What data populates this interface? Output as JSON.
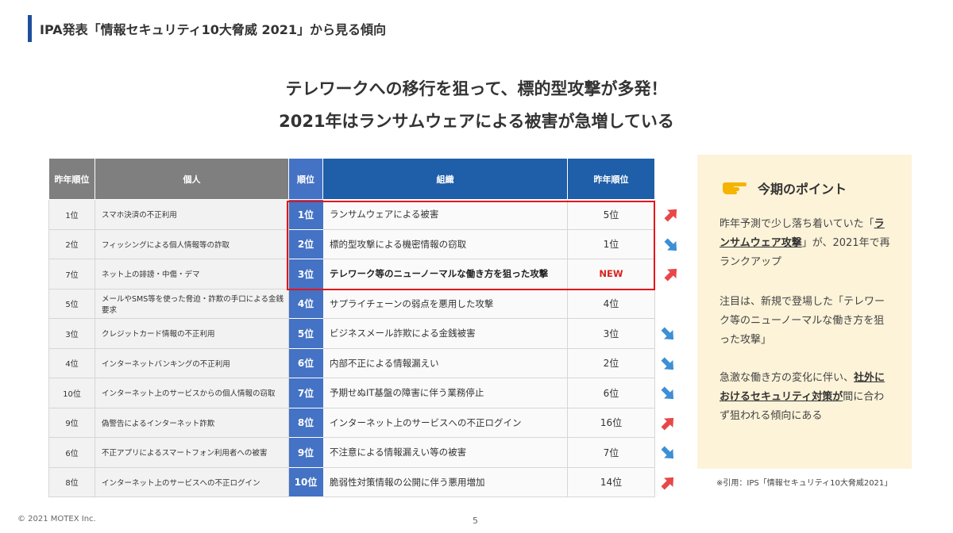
{
  "header": {
    "title": "IPA発表「情報セキュリティ10大脅威 2021」から見る傾向"
  },
  "headline": {
    "line1": "テレワークへの移行を狙って、標的型攻撃が多発！",
    "line2": "2021年はランサムウェアによる被害が急増している"
  },
  "table": {
    "headers": {
      "prev_rank_personal": "昨年順位",
      "personal": "個人",
      "rank": "順位",
      "org": "組織",
      "prev_rank_org": "昨年順位"
    },
    "rows": [
      {
        "prev_personal": "1位",
        "personal": "スマホ決済の不正利用",
        "rank": "1位",
        "org": "ランサムウェアによる被害",
        "prev_org": "5位",
        "trend": "up"
      },
      {
        "prev_personal": "2位",
        "personal": "フィッシングによる個人情報等の詐取",
        "rank": "2位",
        "org": "標的型攻撃による機密情報の窃取",
        "prev_org": "1位",
        "trend": "down"
      },
      {
        "prev_personal": "7位",
        "personal": "ネット上の誹謗・中傷・デマ",
        "rank": "3位",
        "org": "テレワーク等のニューノーマルな働き方を狙った攻撃",
        "prev_org": "NEW",
        "trend": "up"
      },
      {
        "prev_personal": "5位",
        "personal": "メールやSMS等を使った脅迫・詐欺の手口による金銭要求",
        "rank": "4位",
        "org": "サプライチェーンの弱点を悪用した攻撃",
        "prev_org": "4位",
        "trend": "none"
      },
      {
        "prev_personal": "3位",
        "personal": "クレジットカード情報の不正利用",
        "rank": "5位",
        "org": "ビジネスメール詐欺による金銭被害",
        "prev_org": "3位",
        "trend": "down"
      },
      {
        "prev_personal": "4位",
        "personal": "インターネットバンキングの不正利用",
        "rank": "6位",
        "org": "内部不正による情報漏えい",
        "prev_org": "2位",
        "trend": "down"
      },
      {
        "prev_personal": "10位",
        "personal": "インターネット上のサービスからの個人情報の窃取",
        "rank": "7位",
        "org": "予期せぬIT基盤の障害に伴う業務停止",
        "prev_org": "6位",
        "trend": "down"
      },
      {
        "prev_personal": "9位",
        "personal": "偽警告によるインターネット詐欺",
        "rank": "8位",
        "org": "インターネット上のサービスへの不正ログイン",
        "prev_org": "16位",
        "trend": "up"
      },
      {
        "prev_personal": "6位",
        "personal": "不正アプリによるスマートフォン利用者への被害",
        "rank": "9位",
        "org": "不注意による情報漏えい等の被害",
        "prev_org": "7位",
        "trend": "down"
      },
      {
        "prev_personal": "8位",
        "personal": "インターネット上のサービスへの不正ログイン",
        "rank": "10位",
        "org": "脆弱性対策情報の公開に伴う悪用増加",
        "prev_org": "14位",
        "trend": "up"
      }
    ]
  },
  "points": {
    "title": "今期のポイント",
    "icon": "pointing-hand-icon",
    "p1_before": "昨年予測で少し落ち着いていた「",
    "p1_emph": "ランサムウェア攻撃",
    "p1_after": "」が、2021年で再ランクアップ",
    "p2": "注目は、新規で登場した「テレワーク等のニューノーマルな働き方を狙った攻撃」",
    "p3_before": "急激な働き方の変化に伴い、",
    "p3_emph": "社外におけるセキュリティ対策が",
    "p3_after": "間に合わず狙われる傾向にある"
  },
  "citation": "※引用：IPS「情報セキュリティ10大脅威2021」",
  "footer": {
    "copyright": "© 2021 MOTEX Inc.",
    "page": "5"
  },
  "colors": {
    "accent_blue": "#1f5ea8",
    "rank_blue": "#4472c4",
    "highlight_red": "#e5131b",
    "up_arrow": "#e8474a",
    "down_arrow": "#3d8fd6",
    "point_bg": "#fdf3d9"
  }
}
